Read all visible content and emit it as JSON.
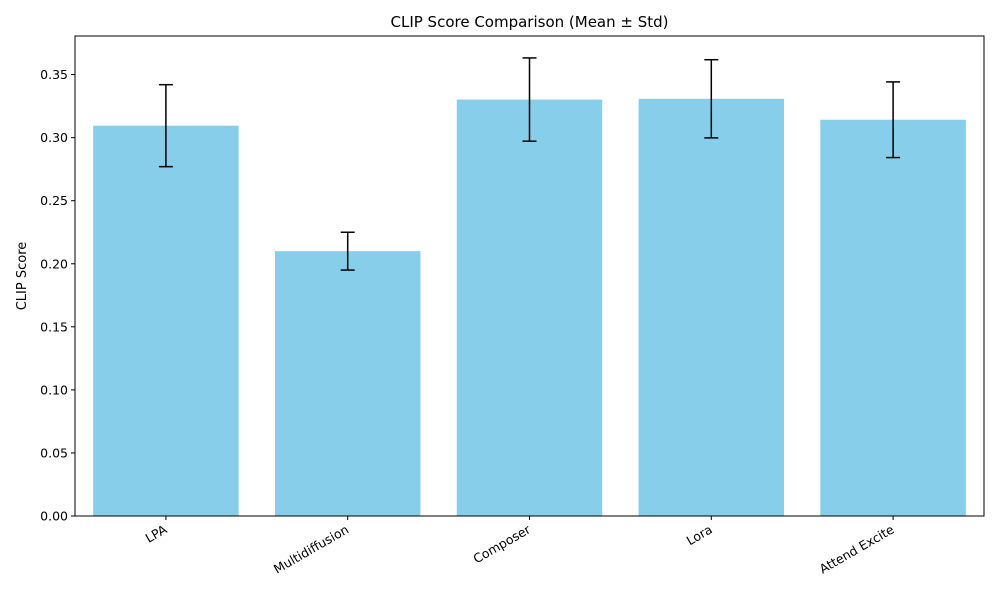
{
  "chart_data": {
    "type": "bar",
    "title": "CLIP Score Comparison (Mean ± Std)",
    "xlabel": "",
    "ylabel": "CLIP Score",
    "categories": [
      "LPA",
      "Multidiffusion",
      "Composer",
      "Lora",
      "Attend Excite"
    ],
    "values": [
      0.3095,
      0.21,
      0.3302,
      0.3308,
      0.3142
    ],
    "errors": [
      0.0325,
      0.015,
      0.033,
      0.031,
      0.03
    ],
    "ylim": [
      0,
      0.3806
    ],
    "yticks": [
      0.0,
      0.05,
      0.1,
      0.15,
      0.2,
      0.25,
      0.3,
      0.35
    ],
    "ytick_labels": [
      "0.00",
      "0.05",
      "0.10",
      "0.15",
      "0.20",
      "0.25",
      "0.30",
      "0.35"
    ],
    "grid": false,
    "bar_color": "#87CEEB",
    "error_color": "#000000"
  }
}
